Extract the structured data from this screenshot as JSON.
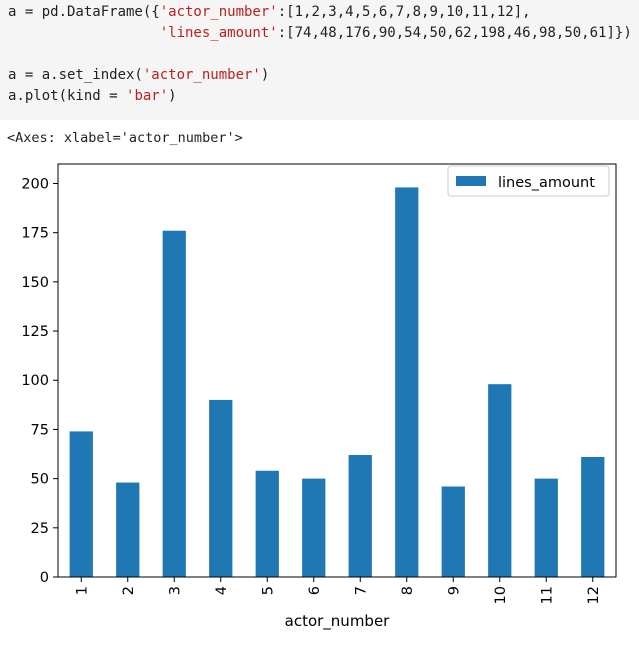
{
  "code": {
    "lines": [
      [
        [
          "a = pd.DataFrame({",
          "op"
        ],
        [
          "'actor_number'",
          "str"
        ],
        [
          ":[",
          "op"
        ],
        [
          "1,2,3,4,5,6,7,8,9,10,11,12",
          "op"
        ],
        [
          "],",
          "op"
        ]
      ],
      [
        [
          "                  ",
          "op"
        ],
        [
          "'lines_amount'",
          "str"
        ],
        [
          ":[",
          "op"
        ],
        [
          "74,48,176,90,54,50,62,198,46,98,50,61",
          "op"
        ],
        [
          "]})",
          "op"
        ]
      ],
      [],
      [
        [
          "a = a.set_index(",
          "op"
        ],
        [
          "'actor_number'",
          "str"
        ],
        [
          ")",
          "op"
        ]
      ],
      [
        [
          "a.plot(kind = ",
          "op"
        ],
        [
          "'bar'",
          "str"
        ],
        [
          ")",
          "op"
        ]
      ]
    ]
  },
  "output": {
    "repr": "<Axes: xlabel='actor_number'>"
  },
  "chart_data": {
    "type": "bar",
    "categories": [
      "1",
      "2",
      "3",
      "4",
      "5",
      "6",
      "7",
      "8",
      "9",
      "10",
      "11",
      "12"
    ],
    "series": [
      {
        "name": "lines_amount",
        "values": [
          74,
          48,
          176,
          90,
          54,
          50,
          62,
          198,
          46,
          98,
          50,
          61
        ],
        "color": "#1f77b4"
      }
    ],
    "xlabel": "actor_number",
    "ylabel": "",
    "ylim": [
      0,
      209.9
    ],
    "yticks": [
      0,
      25,
      50,
      75,
      100,
      125,
      150,
      175,
      200
    ],
    "xtick_rotation": 90,
    "grid": false,
    "legend_position": "upper right",
    "axis_color": "#000000"
  }
}
